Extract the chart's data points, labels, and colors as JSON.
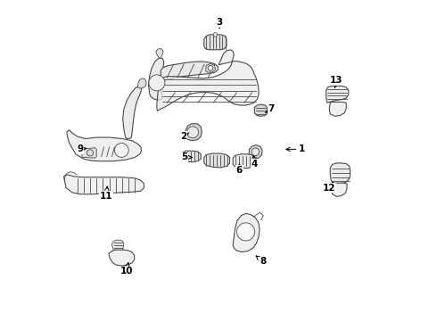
{
  "background_color": "#ffffff",
  "line_color": "#4a4a4a",
  "figsize": [
    4.9,
    3.6
  ],
  "dpi": 100,
  "labels": {
    "1": [
      0.76,
      0.535,
      0.7,
      0.535
    ],
    "2": [
      0.39,
      0.575,
      0.415,
      0.59
    ],
    "3": [
      0.503,
      0.93,
      0.503,
      0.91
    ],
    "4": [
      0.612,
      0.49,
      0.608,
      0.518
    ],
    "5": [
      0.395,
      0.51,
      0.42,
      0.51
    ],
    "6": [
      0.565,
      0.47,
      0.565,
      0.492
    ],
    "7": [
      0.665,
      0.66,
      0.638,
      0.645
    ],
    "8": [
      0.638,
      0.185,
      0.615,
      0.205
    ],
    "9": [
      0.07,
      0.535,
      0.098,
      0.54
    ],
    "10": [
      0.213,
      0.155,
      0.22,
      0.185
    ],
    "11": [
      0.15,
      0.39,
      0.155,
      0.43
    ],
    "12": [
      0.845,
      0.415,
      0.858,
      0.435
    ],
    "13": [
      0.868,
      0.75,
      0.862,
      0.725
    ]
  }
}
